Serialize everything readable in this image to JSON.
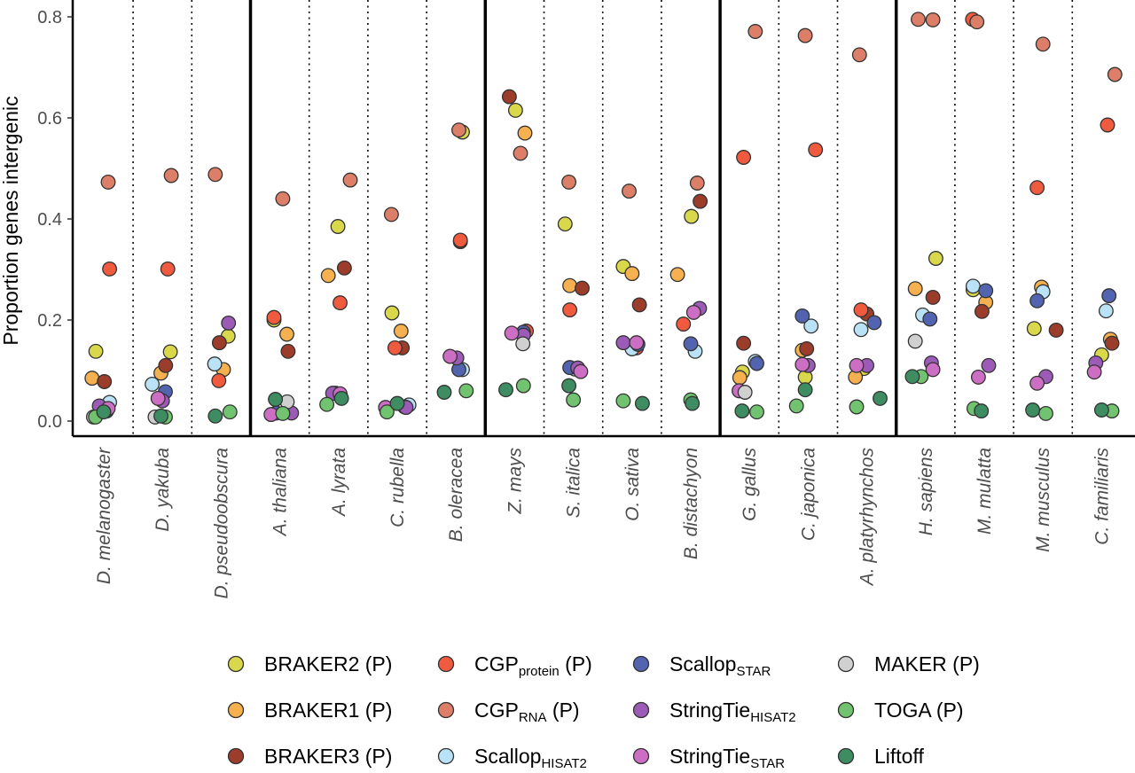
{
  "chart_data": {
    "type": "scatter",
    "title": "",
    "xlabel": "",
    "ylabel": "Proportion genes intergenic",
    "ylim": [
      -0.03,
      0.82
    ],
    "y_ticks": [
      "0.0",
      "0.2",
      "0.4",
      "0.6",
      "0.8"
    ],
    "y_tick_values": [
      0,
      0.2,
      0.4,
      0.6,
      0.8
    ],
    "grid": false,
    "legend_position": "bottom",
    "categories": [
      "D. melanogaster",
      "D. yakuba",
      "D. pseudoobscura",
      "A. thaliana",
      "A. lyrata",
      "C. rubella",
      "B. oleracea",
      "Z. mays",
      "S. italica",
      "O. sativa",
      "B. distachyon",
      "G. gallus",
      "C. japonica",
      "A. platyrhynchos",
      "H. sapiens",
      "M. mulatta",
      "M. musculus",
      "C. familiaris"
    ],
    "group_boundaries_after_index": [
      2,
      6,
      10,
      13
    ],
    "series": [
      {
        "key": "braker2",
        "label": "BRAKER2 (P)",
        "label_main": "BRAKER2 (P)",
        "label_sub": "",
        "label_tail": "",
        "color": "#d9d84a",
        "points": [
          [
            0,
            0.138,
            -0.27
          ],
          [
            1,
            0.137,
            0.27
          ],
          [
            2,
            0.168,
            0.24
          ],
          [
            3,
            0.2,
            -0.2
          ],
          [
            4,
            0.385,
            -0.02
          ],
          [
            5,
            0.214,
            -0.18
          ],
          [
            6,
            0.572,
            0.22
          ],
          [
            7,
            0.615,
            0.03
          ],
          [
            8,
            0.39,
            -0.28
          ],
          [
            9,
            0.306,
            -0.3
          ],
          [
            10,
            0.405,
            0.02
          ],
          [
            11,
            0.097,
            -0.24
          ],
          [
            12,
            0.087,
            -0.1
          ],
          [
            13,
            0.104,
            -0.1
          ],
          [
            14,
            0.322,
            0.35
          ],
          [
            15,
            0.26,
            -0.38
          ],
          [
            16,
            0.183,
            -0.3
          ],
          [
            17,
            0.131,
            0.0
          ]
        ]
      },
      {
        "key": "braker1",
        "label": "BRAKER1 (P)",
        "label_main": "BRAKER1 (P)",
        "label_sub": "",
        "label_tail": "",
        "color": "#f5b04f",
        "points": [
          [
            0,
            0.085,
            -0.4
          ],
          [
            1,
            0.095,
            -0.05
          ],
          [
            2,
            0.102,
            0.08
          ],
          [
            3,
            0.172,
            0.24
          ],
          [
            4,
            0.288,
            -0.35
          ],
          [
            5,
            0.178,
            0.13
          ],
          [
            7,
            0.57,
            0.35
          ],
          [
            8,
            0.268,
            -0.12
          ],
          [
            9,
            0.292,
            0.0
          ],
          [
            10,
            0.29,
            -0.45
          ],
          [
            11,
            0.086,
            -0.33
          ],
          [
            12,
            0.14,
            -0.2
          ],
          [
            13,
            0.087,
            -0.39
          ],
          [
            14,
            0.262,
            -0.35
          ],
          [
            15,
            0.235,
            0.05
          ],
          [
            16,
            0.265,
            -0.05
          ],
          [
            17,
            0.162,
            0.3
          ]
        ]
      },
      {
        "key": "braker3",
        "label": "BRAKER3 (P)",
        "label_main": "BRAKER3 (P)",
        "label_sub": "",
        "label_tail": "",
        "color": "#9c3d2b",
        "points": [
          [
            0,
            0.078,
            0.02
          ],
          [
            1,
            0.11,
            0.11
          ],
          [
            2,
            0.155,
            -0.06
          ],
          [
            3,
            0.138,
            0.28
          ],
          [
            4,
            0.303,
            0.2
          ],
          [
            5,
            0.145,
            0.17
          ],
          [
            6,
            0.355,
            0.15
          ],
          [
            7,
            0.642,
            -0.18
          ],
          [
            8,
            0.263,
            0.3
          ],
          [
            9,
            0.23,
            0.25
          ],
          [
            10,
            0.435,
            0.32
          ],
          [
            11,
            0.154,
            -0.2
          ],
          [
            12,
            0.143,
            -0.05
          ],
          [
            13,
            0.212,
            0.0
          ],
          [
            14,
            0.245,
            0.25
          ],
          [
            15,
            0.217,
            -0.08
          ],
          [
            16,
            0.18,
            0.45
          ],
          [
            17,
            0.154,
            0.35
          ]
        ]
      },
      {
        "key": "cgp_protein",
        "label": "CGPprotein (P)",
        "label_main": "CGP",
        "label_sub": "protein",
        "label_tail": " (P)",
        "color": "#f05b40",
        "points": [
          [
            0,
            0.301,
            0.2
          ],
          [
            1,
            0.301,
            0.18
          ],
          [
            2,
            0.08,
            -0.08
          ],
          [
            3,
            0.205,
            -0.2
          ],
          [
            4,
            0.234,
            0.05
          ],
          [
            5,
            0.145,
            -0.08
          ],
          [
            6,
            0.358,
            0.15
          ],
          [
            7,
            0.178,
            0.4
          ],
          [
            8,
            0.22,
            -0.12
          ],
          [
            9,
            0.145,
            0.15
          ],
          [
            10,
            0.192,
            -0.25
          ],
          [
            11,
            0.522,
            -0.2
          ],
          [
            12,
            0.537,
            0.25
          ],
          [
            13,
            0.22,
            -0.2
          ],
          [
            15,
            0.795,
            -0.4
          ],
          [
            16,
            0.462,
            -0.2
          ],
          [
            17,
            0.586,
            0.2
          ]
        ]
      },
      {
        "key": "cgp_rna",
        "label": "CGPRNA (P)",
        "label_main": "CGP",
        "label_sub": "RNA",
        "label_tail": " (P)",
        "color": "#dd7f68",
        "points": [
          [
            0,
            0.473,
            0.15
          ],
          [
            1,
            0.486,
            0.3
          ],
          [
            2,
            0.488,
            -0.2
          ],
          [
            3,
            0.44,
            0.1
          ],
          [
            4,
            0.477,
            0.4
          ],
          [
            5,
            0.409,
            -0.2
          ],
          [
            6,
            0.576,
            0.1
          ],
          [
            7,
            0.53,
            0.2
          ],
          [
            8,
            0.473,
            -0.15
          ],
          [
            9,
            0.455,
            -0.1
          ],
          [
            10,
            0.471,
            0.22
          ],
          [
            11,
            0.771,
            0.2
          ],
          [
            12,
            0.763,
            -0.1
          ],
          [
            13,
            0.725,
            -0.25
          ],
          [
            14,
            0.795,
            -0.25
          ],
          [
            14,
            0.794,
            0.25
          ],
          [
            15,
            0.79,
            -0.25
          ],
          [
            16,
            0.746,
            0.0
          ],
          [
            17,
            0.686,
            0.45
          ]
        ]
      },
      {
        "key": "scallop_hisat2",
        "label": "ScallopHISAT2",
        "label_main": "Scallop",
        "label_sub": "HISAT2",
        "label_tail": "",
        "color": "#b9e2f6",
        "points": [
          [
            0,
            0.037,
            0.2
          ],
          [
            1,
            0.073,
            -0.35
          ],
          [
            2,
            0.113,
            -0.22
          ],
          [
            4,
            0.055,
            -0.1
          ],
          [
            5,
            0.032,
            0.4
          ],
          [
            6,
            0.102,
            0.22
          ],
          [
            8,
            0.103,
            0.05
          ],
          [
            9,
            0.143,
            0.0
          ],
          [
            10,
            0.138,
            0.15
          ],
          [
            11,
            0.118,
            0.2
          ],
          [
            12,
            0.188,
            0.1
          ],
          [
            13,
            0.181,
            -0.2
          ],
          [
            14,
            0.21,
            -0.1
          ],
          [
            15,
            0.267,
            -0.38
          ],
          [
            16,
            0.256,
            0.0
          ],
          [
            17,
            0.218,
            0.15
          ]
        ]
      },
      {
        "key": "scallop_star",
        "label": "ScallopSTAR",
        "label_main": "Scallop",
        "label_sub": "STAR",
        "label_tail": "",
        "color": "#5264b0",
        "points": [
          [
            0,
            0.02,
            0.1
          ],
          [
            1,
            0.058,
            0.1
          ],
          [
            3,
            0.016,
            -0.12
          ],
          [
            4,
            0.053,
            0.05
          ],
          [
            5,
            0.028,
            0.25
          ],
          [
            6,
            0.102,
            0.1
          ],
          [
            7,
            0.176,
            0.3
          ],
          [
            8,
            0.106,
            -0.12
          ],
          [
            9,
            0.152,
            0.2
          ],
          [
            10,
            0.153,
            0.0
          ],
          [
            11,
            0.114,
            0.25
          ],
          [
            12,
            0.208,
            -0.2
          ],
          [
            13,
            0.195,
            0.25
          ],
          [
            14,
            0.202,
            0.15
          ],
          [
            15,
            0.258,
            0.05
          ],
          [
            16,
            0.238,
            -0.2
          ],
          [
            17,
            0.248,
            0.25
          ]
        ]
      },
      {
        "key": "stringtie_hisat2",
        "label": "StringTieHISAT2",
        "label_main": "StringTie",
        "label_sub": "HISAT2",
        "label_tail": "",
        "color": "#9c5bb6",
        "points": [
          [
            0,
            0.03,
            -0.15
          ],
          [
            1,
            0.04,
            0.0
          ],
          [
            2,
            0.194,
            0.25
          ],
          [
            3,
            0.016,
            0.4
          ],
          [
            4,
            0.055,
            -0.2
          ],
          [
            5,
            0.027,
            0.3
          ],
          [
            6,
            0.125,
            0.03
          ],
          [
            7,
            0.17,
            0.3
          ],
          [
            8,
            0.105,
            0.15
          ],
          [
            9,
            0.155,
            -0.3
          ],
          [
            10,
            0.223,
            0.3
          ],
          [
            11,
            0.06,
            -0.35
          ],
          [
            12,
            0.11,
            0.0
          ],
          [
            13,
            0.11,
            0.0
          ],
          [
            14,
            0.115,
            0.2
          ],
          [
            15,
            0.11,
            0.15
          ],
          [
            16,
            0.088,
            0.1
          ],
          [
            17,
            0.115,
            -0.2
          ]
        ]
      },
      {
        "key": "stringtie_star",
        "label": "StringTieSTAR",
        "label_main": "StringTie",
        "label_sub": "STAR",
        "label_tail": "",
        "color": "#cc6fc4",
        "points": [
          [
            0,
            0.025,
            0.15
          ],
          [
            1,
            0.045,
            -0.15
          ],
          [
            3,
            0.013,
            -0.3
          ],
          [
            4,
            0.054,
            0.05
          ],
          [
            5,
            0.027,
            -0.4
          ],
          [
            6,
            0.128,
            -0.2
          ],
          [
            7,
            0.174,
            -0.1
          ],
          [
            8,
            0.098,
            0.25
          ],
          [
            9,
            0.155,
            0.15
          ],
          [
            10,
            0.215,
            0.1
          ],
          [
            11,
            0.06,
            -0.35
          ],
          [
            12,
            0.112,
            -0.2
          ],
          [
            13,
            0.11,
            -0.35
          ],
          [
            14,
            0.102,
            0.25
          ],
          [
            15,
            0.087,
            -0.2
          ],
          [
            16,
            0.075,
            -0.2
          ],
          [
            17,
            0.097,
            -0.25
          ]
        ]
      },
      {
        "key": "maker",
        "label": "MAKER (P)",
        "label_main": "MAKER (P)",
        "label_sub": "",
        "label_tail": "",
        "color": "#d0d0d0",
        "points": [
          [
            0,
            0.008,
            -0.35
          ],
          [
            1,
            0.008,
            -0.25
          ],
          [
            3,
            0.038,
            0.25
          ],
          [
            7,
            0.153,
            0.28
          ],
          [
            11,
            0.057,
            -0.15
          ],
          [
            14,
            0.158,
            -0.35
          ]
        ]
      },
      {
        "key": "toga",
        "label": "TOGA (P)",
        "label_main": "TOGA (P)",
        "label_sub": "",
        "label_tail": "",
        "color": "#72c36f",
        "points": [
          [
            0,
            0.008,
            -0.28
          ],
          [
            1,
            0.008,
            0.1
          ],
          [
            2,
            0.018,
            0.3
          ],
          [
            3,
            0.015,
            0.1
          ],
          [
            4,
            0.033,
            -0.4
          ],
          [
            5,
            0.018,
            -0.35
          ],
          [
            6,
            0.06,
            0.35
          ],
          [
            7,
            0.07,
            0.3
          ],
          [
            8,
            0.042,
            0.0
          ],
          [
            9,
            0.04,
            -0.3
          ],
          [
            10,
            0.042,
            0.0
          ],
          [
            11,
            0.018,
            0.25
          ],
          [
            12,
            0.03,
            -0.4
          ],
          [
            13,
            0.028,
            -0.35
          ],
          [
            14,
            0.088,
            -0.15
          ],
          [
            15,
            0.025,
            -0.35
          ],
          [
            16,
            0.015,
            0.1
          ],
          [
            17,
            0.02,
            0.35
          ]
        ]
      },
      {
        "key": "liftoff",
        "label": "Liftoff",
        "label_main": "Liftoff",
        "label_sub": "",
        "label_tail": "",
        "color": "#3e8c62",
        "points": [
          [
            0,
            0.018,
            0.0
          ],
          [
            1,
            0.01,
            -0.05
          ],
          [
            2,
            0.01,
            -0.2
          ],
          [
            3,
            0.043,
            -0.15
          ],
          [
            4,
            0.045,
            0.1
          ],
          [
            5,
            0.035,
            0.0
          ],
          [
            6,
            0.057,
            -0.4
          ],
          [
            7,
            0.062,
            -0.3
          ],
          [
            8,
            0.07,
            -0.15
          ],
          [
            9,
            0.035,
            0.35
          ],
          [
            10,
            0.035,
            0.05
          ],
          [
            11,
            0.02,
            -0.25
          ],
          [
            12,
            0.062,
            -0.1
          ],
          [
            13,
            0.045,
            0.45
          ],
          [
            14,
            0.088,
            -0.45
          ],
          [
            15,
            0.02,
            -0.1
          ],
          [
            16,
            0.022,
            -0.35
          ],
          [
            17,
            0.022,
            0.0
          ]
        ]
      }
    ]
  }
}
